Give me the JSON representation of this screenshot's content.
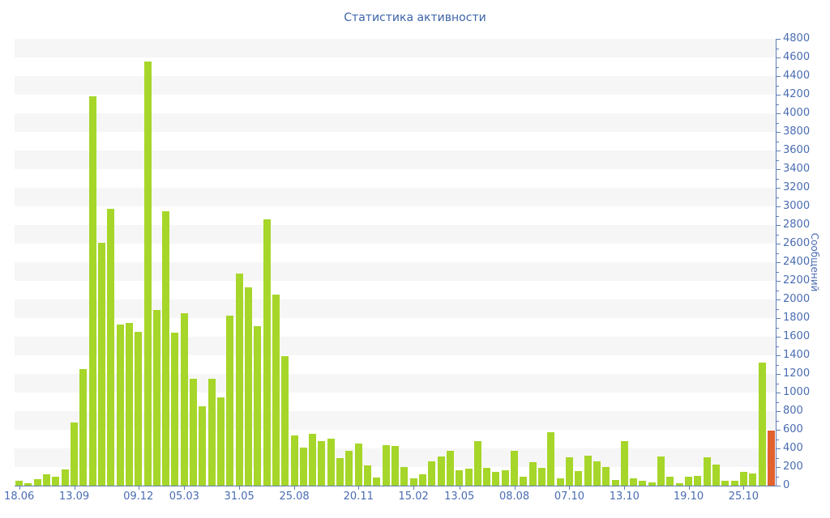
{
  "title": "Статистика активности",
  "colors": {
    "bar_default": "#a6d629",
    "bar_highlight": "#e2612c",
    "axis": "#5f7db8",
    "tick_label": "#4a6cb3",
    "title": "#3c64a8",
    "stripe": "#f6f6f7",
    "background": "#ffffff"
  },
  "chart_data": {
    "type": "bar",
    "title": "Статистика активности",
    "xlabel": "",
    "ylabel": "Сообщений",
    "ylim": [
      0,
      4800
    ],
    "y_tick_step_major": 200,
    "y_tick_step_minor": 100,
    "y_ticks": [
      0,
      200,
      400,
      600,
      800,
      1000,
      1200,
      1400,
      1600,
      1800,
      2000,
      2200,
      2400,
      2600,
      2800,
      3000,
      3200,
      3400,
      3600,
      3800,
      4000,
      4200,
      4400,
      4600,
      4800
    ],
    "grid": "horizontal striped bands, 200 units per band",
    "legend_position": "none",
    "y_axis_side": "right",
    "values": [
      50,
      30,
      70,
      120,
      100,
      170,
      680,
      1250,
      4180,
      2610,
      2970,
      1730,
      1750,
      1650,
      4560,
      1890,
      2950,
      1640,
      1850,
      1150,
      850,
      1150,
      950,
      1830,
      2280,
      2130,
      1710,
      2860,
      2050,
      1390,
      540,
      410,
      560,
      480,
      505,
      300,
      370,
      450,
      220,
      90,
      435,
      430,
      200,
      80,
      120,
      265,
      310,
      370,
      165,
      180,
      480,
      190,
      150,
      165,
      375,
      100,
      255,
      195,
      575,
      80,
      305,
      155,
      325,
      260,
      200,
      65,
      480,
      80,
      50,
      35,
      310,
      95,
      30,
      100,
      105,
      305,
      230,
      50,
      50,
      150,
      130,
      1320,
      590
    ],
    "highlight_last_bar": true,
    "highlight_last_bar_value": 590,
    "x_tick_labels": [
      {
        "label": "18.06",
        "bar_index": 0
      },
      {
        "label": "13.09",
        "bar_index": 6
      },
      {
        "label": "09.12",
        "bar_index": 13
      },
      {
        "label": "05.03",
        "bar_index": 18
      },
      {
        "label": "31.05",
        "bar_index": 24
      },
      {
        "label": "25.08",
        "bar_index": 30
      },
      {
        "label": "20.11",
        "bar_index": 37
      },
      {
        "label": "15.02",
        "bar_index": 43
      },
      {
        "label": "13.05",
        "bar_index": 48
      },
      {
        "label": "08.08",
        "bar_index": 54
      },
      {
        "label": "07.10",
        "bar_index": 60
      },
      {
        "label": "13.10",
        "bar_index": 66
      },
      {
        "label": "19.10",
        "bar_index": 73
      },
      {
        "label": "25.10",
        "bar_index": 79
      }
    ]
  }
}
